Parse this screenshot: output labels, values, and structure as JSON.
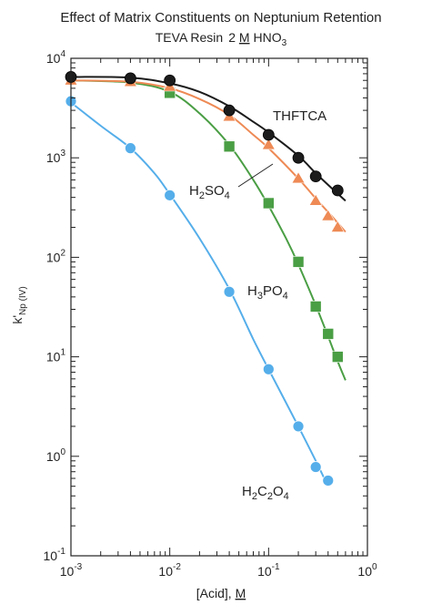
{
  "chart_data": {
    "type": "scatter",
    "title": "Effect of Matrix Constituents on Neptunium Retention",
    "subtitle": {
      "resin": "TEVA Resin",
      "conc": "2 ",
      "unit": "M",
      "acid": "HNO",
      "acid_sub": "3"
    },
    "xlabel": {
      "text": "[Acid], ",
      "unit": "M"
    },
    "ylabel": {
      "main": "k'",
      "sub": "Np (IV)"
    },
    "x_scale": "log",
    "y_scale": "log",
    "xlim": [
      0.001,
      1
    ],
    "ylim": [
      0.1,
      10000
    ],
    "x_ticks": [
      {
        "base": "10",
        "exp": "-3",
        "value": 0.001
      },
      {
        "base": "10",
        "exp": "-2",
        "value": 0.01
      },
      {
        "base": "10",
        "exp": "-1",
        "value": 0.1
      },
      {
        "base": "10",
        "exp": "0",
        "value": 1
      }
    ],
    "y_ticks": [
      {
        "base": "10",
        "exp": "-1",
        "value": 0.1
      },
      {
        "base": "10",
        "exp": "0",
        "value": 1
      },
      {
        "base": "10",
        "exp": "1",
        "value": 10
      },
      {
        "base": "10",
        "exp": "2",
        "value": 100
      },
      {
        "base": "10",
        "exp": "3",
        "value": 1000
      },
      {
        "base": "10",
        "exp": "4",
        "value": 10000
      }
    ],
    "grid": false,
    "series": [
      {
        "name": "THFTCA",
        "label_parts": [
          {
            "t": "THFTCA",
            "sub": false
          }
        ],
        "marker": "circle",
        "color": "#1c1c1c",
        "line_color": "#1c1c1c",
        "x": [
          0.001,
          0.004,
          0.01,
          0.04,
          0.1,
          0.2,
          0.3,
          0.5
        ],
        "y": [
          6500,
          6300,
          6000,
          3000,
          1700,
          1000,
          650,
          470
        ],
        "curve_x": [
          0.001,
          0.004,
          0.01,
          0.02,
          0.04,
          0.07,
          0.1,
          0.2,
          0.3,
          0.45,
          0.6
        ],
        "curve_y": [
          6500,
          6400,
          5600,
          4600,
          3300,
          2300,
          1800,
          1050,
          700,
          480,
          370
        ]
      },
      {
        "name": "H2SO4",
        "label_parts": [
          {
            "t": "H",
            "sub": false
          },
          {
            "t": "2",
            "sub": true
          },
          {
            "t": "SO",
            "sub": false
          },
          {
            "t": "4",
            "sub": true
          }
        ],
        "marker": "triangle",
        "color": "#ee8a55",
        "line_color": "#ee8a55",
        "x": [
          0.001,
          0.004,
          0.01,
          0.04,
          0.1,
          0.2,
          0.3,
          0.4,
          0.5
        ],
        "y": [
          6000,
          5800,
          5200,
          2600,
          1350,
          620,
          370,
          260,
          200
        ],
        "curve_x": [
          0.001,
          0.004,
          0.01,
          0.02,
          0.04,
          0.07,
          0.1,
          0.2,
          0.3,
          0.45,
          0.6
        ],
        "curve_y": [
          6000,
          5800,
          5000,
          3900,
          2700,
          1700,
          1250,
          620,
          390,
          250,
          180
        ]
      },
      {
        "name": "H3PO4",
        "label_parts": [
          {
            "t": "H",
            "sub": false
          },
          {
            "t": "3",
            "sub": true
          },
          {
            "t": "PO",
            "sub": false
          },
          {
            "t": "4",
            "sub": true
          }
        ],
        "marker": "square",
        "color": "#4a9e44",
        "line_color": "#4a9e44",
        "x": [
          0.01,
          0.04,
          0.1,
          0.2,
          0.3,
          0.4,
          0.5
        ],
        "y": [
          4500,
          1300,
          350,
          90,
          32,
          17,
          10
        ],
        "curve_x": [
          0.001,
          0.004,
          0.01,
          0.02,
          0.04,
          0.07,
          0.1,
          0.15,
          0.2,
          0.3,
          0.4,
          0.5,
          0.6
        ],
        "curve_y": [
          6000,
          5700,
          4600,
          2800,
          1350,
          600,
          330,
          155,
          85,
          33,
          16,
          9,
          5.8
        ]
      },
      {
        "name": "H2C2O4",
        "label_parts": [
          {
            "t": "H",
            "sub": false
          },
          {
            "t": "2",
            "sub": true
          },
          {
            "t": "C",
            "sub": false
          },
          {
            "t": "2",
            "sub": true
          },
          {
            "t": "O",
            "sub": false
          },
          {
            "t": "4",
            "sub": true
          }
        ],
        "marker": "circle",
        "color": "#55aeea",
        "line_color": "#55aeea",
        "x": [
          0.001,
          0.004,
          0.01,
          0.04,
          0.1,
          0.2,
          0.3,
          0.4
        ],
        "y": [
          3700,
          1250,
          420,
          45,
          7.5,
          2.0,
          0.78,
          0.57
        ],
        "curve_x": [
          0.001,
          0.002,
          0.004,
          0.007,
          0.01,
          0.02,
          0.04,
          0.07,
          0.1,
          0.2,
          0.3,
          0.4
        ],
        "curve_y": [
          3600,
          2100,
          1250,
          700,
          430,
          155,
          48,
          15,
          7.5,
          2.0,
          0.9,
          0.5
        ]
      }
    ]
  }
}
